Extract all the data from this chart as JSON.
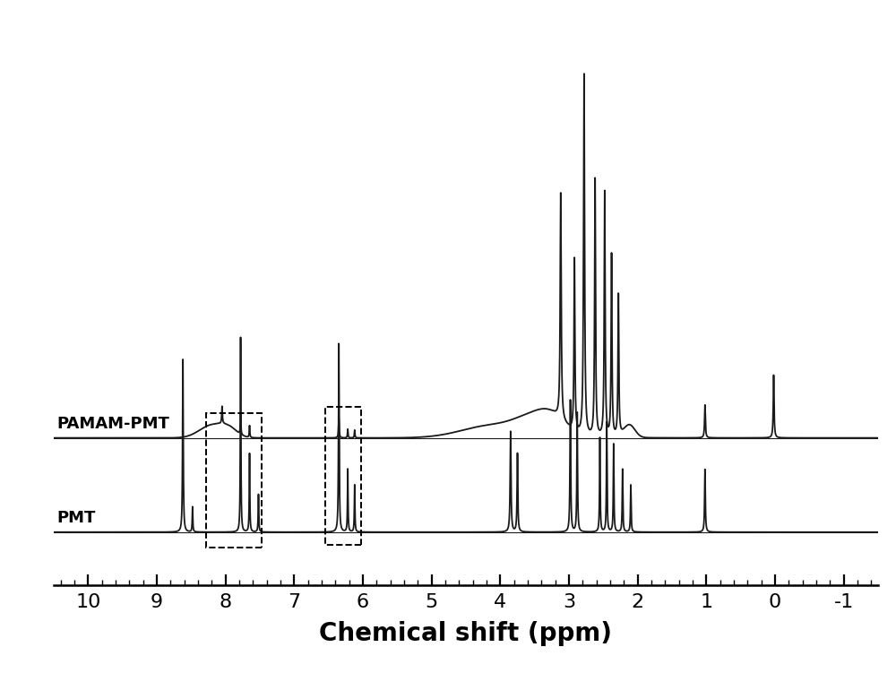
{
  "xlim_left": 10.5,
  "xlim_right": -1.5,
  "xlabel": "Chemical shift (ppm)",
  "xlabel_fontsize": 20,
  "xlabel_fontweight": "bold",
  "xticks": [
    10,
    9,
    8,
    7,
    6,
    5,
    4,
    3,
    2,
    1,
    0,
    -1
  ],
  "tick_fontsize": 16,
  "label_pamam": "PAMAM-PMT",
  "label_pmt": "PMT",
  "label_fontsize": 13,
  "line_color": "#1a1a1a",
  "line_width": 1.3,
  "pamam_baseline": 0.42,
  "pmt_baseline": 0.12,
  "ylim_bottom": -0.05,
  "ylim_top": 1.75
}
